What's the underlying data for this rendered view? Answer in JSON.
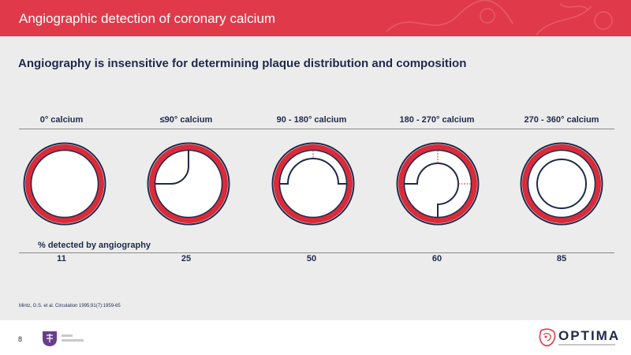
{
  "header": {
    "title": "Angiographic detection of coronary calcium"
  },
  "subtitle": "Angiography is insensitive for determining plaque distribution and composition",
  "columns": [
    {
      "label": "0° calcium",
      "percent": "11"
    },
    {
      "label": "≤90° calcium",
      "percent": "25"
    },
    {
      "label": "90 - 180° calcium",
      "percent": "50"
    },
    {
      "label": "180 - 270° calcium",
      "percent": "60"
    },
    {
      "label": "270 - 360° calcium",
      "percent": "85"
    }
  ],
  "detected_label": "% detected by angiography",
  "citation": "Mintz, G.S. et al. Circulation 1995;91(7):1959-65",
  "footer": {
    "page": "8",
    "logo_text": "OPTIMA"
  },
  "colors": {
    "accent": "#e03a4a",
    "navy": "#1f2a4a",
    "vessel_red": "#d92b3a",
    "marker_red": "#e0303a"
  }
}
